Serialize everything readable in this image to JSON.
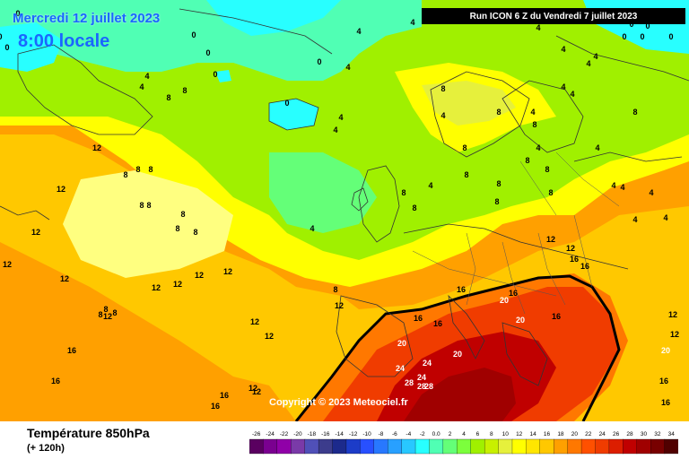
{
  "header": {
    "date": "Mercredi 12 juillet 2023",
    "time": "8:00 locale",
    "run": "Run ICON 6 Z du Vendredi 7 juillet 2023"
  },
  "copyright": "Copyright © 2023 Meteociel.fr",
  "footer": {
    "variable": "Température 850hPa",
    "lead": "(+ 120h)"
  },
  "scale": {
    "values": [
      -26,
      -24,
      -22,
      -20,
      -18,
      -16,
      -14,
      -12,
      -10,
      -8,
      -6,
      -4,
      -2,
      0,
      2,
      4,
      6,
      8,
      10,
      12,
      14,
      16,
      18,
      20,
      22,
      24,
      26,
      28,
      30,
      32,
      34
    ],
    "labels": [
      "-26",
      "-24",
      "-22",
      "-20",
      "-18",
      "-16",
      "-14",
      "-12",
      "-10",
      "-8",
      "-6",
      "-4",
      "-2",
      "0.0",
      "2",
      "4",
      "6",
      "8",
      "10",
      "12",
      "14",
      "16",
      "18",
      "20",
      "22",
      "24",
      "26",
      "28",
      "30",
      "32",
      "34"
    ],
    "colors": [
      "#5a0060",
      "#7a0090",
      "#9000a8",
      "#7a3aa8",
      "#5050b8",
      "#3c3c8c",
      "#1c2a8c",
      "#1c3cc8",
      "#2850ff",
      "#2878ff",
      "#28a0ff",
      "#28c8ff",
      "#28ffff",
      "#50ffb4",
      "#64ff78",
      "#7cff3c",
      "#a0f000",
      "#c8f000",
      "#e6f03c",
      "#ffff00",
      "#ffe600",
      "#ffc800",
      "#ffa000",
      "#ff7800",
      "#ff5000",
      "#f03c00",
      "#dc1e00",
      "#c00000",
      "#a00000",
      "#780000",
      "#500000"
    ]
  },
  "map_labels": [
    "0",
    "0",
    "0",
    "0",
    "0",
    "0",
    "0",
    "0",
    "0",
    "0",
    "0",
    "0",
    "0",
    "0",
    "4",
    "4",
    "4",
    "4",
    "4",
    "4",
    "4",
    "4",
    "4",
    "4",
    "4",
    "4",
    "4",
    "4",
    "4",
    "4",
    "4",
    "4",
    "4",
    "4",
    "4",
    "4",
    "4",
    "4",
    "8",
    "8",
    "8",
    "8",
    "8",
    "8",
    "8",
    "8",
    "8",
    "8",
    "8",
    "8",
    "8",
    "8",
    "8",
    "8",
    "8",
    "8",
    "8",
    "8",
    "8",
    "8",
    "8",
    "8",
    "8",
    "8",
    "8",
    "12",
    "12",
    "12",
    "12",
    "12",
    "12",
    "12",
    "12",
    "12",
    "12",
    "12",
    "12",
    "12",
    "12",
    "12",
    "12",
    "12",
    "12",
    "12",
    "16",
    "16",
    "16",
    "16",
    "16",
    "16",
    "16",
    "16",
    "16",
    "16",
    "16",
    "16",
    "16",
    "20",
    "20",
    "20",
    "20",
    "20",
    "24",
    "24",
    "24",
    "28",
    "28",
    "28",
    "28",
    "28",
    "28",
    "28"
  ]
}
